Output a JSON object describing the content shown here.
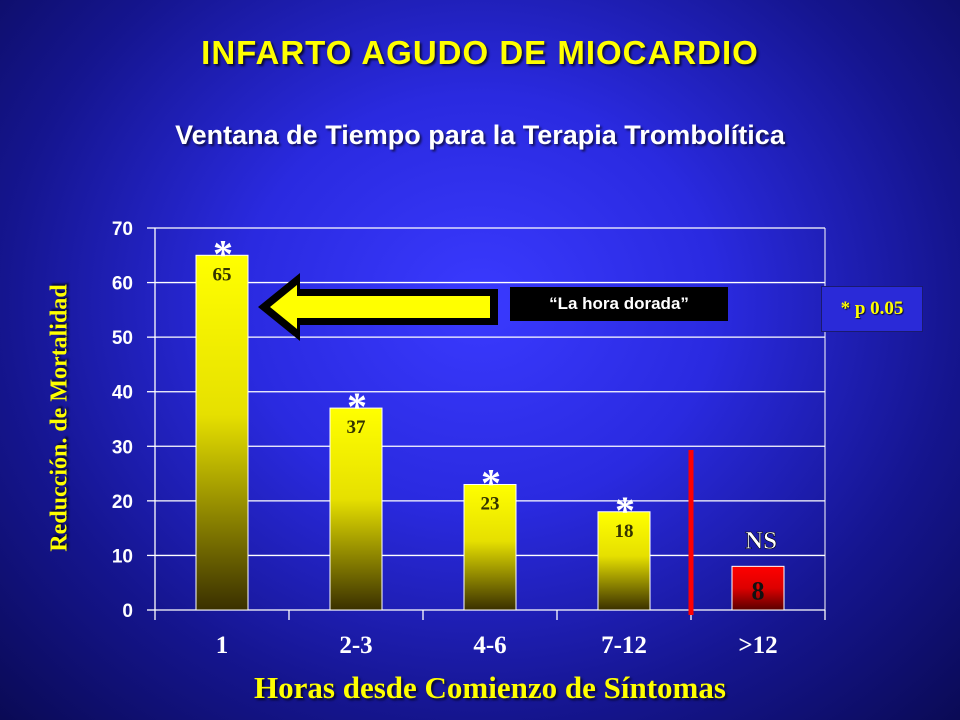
{
  "slide": {
    "title": "INFARTO AGUDO DE MIOCARDIO",
    "subtitle": "Ventana de Tiempo para la Terapia Trombolítica",
    "callout": "“La hora dorada”",
    "note": "* p 0.05"
  },
  "chart_data": {
    "type": "bar",
    "categories": [
      "1",
      "2-3",
      "4-6",
      "7-12",
      ">12"
    ],
    "values": [
      65,
      37,
      23,
      18,
      8
    ],
    "value_labels": [
      "65",
      "37",
      "23",
      "18",
      "8"
    ],
    "markers": [
      "*",
      "*",
      "*",
      "*",
      "NS"
    ],
    "xlabel": "Horas desde Comienzo de Síntomas",
    "ylabel": "Reducción. de Mortalidad",
    "ylim": [
      0,
      70
    ],
    "yticks": [
      0,
      10,
      20,
      30,
      40,
      50,
      60,
      70
    ],
    "grid": true,
    "colors": {
      "bar_top": "#ffff00",
      "bar_bottom": "#3a3000",
      "last_bar_top": "#ff0000",
      "last_bar_bottom": "#5a0000",
      "divider": "#ff0000",
      "arrow_fill": "#ffff00",
      "arrow_outline": "#000000"
    }
  }
}
